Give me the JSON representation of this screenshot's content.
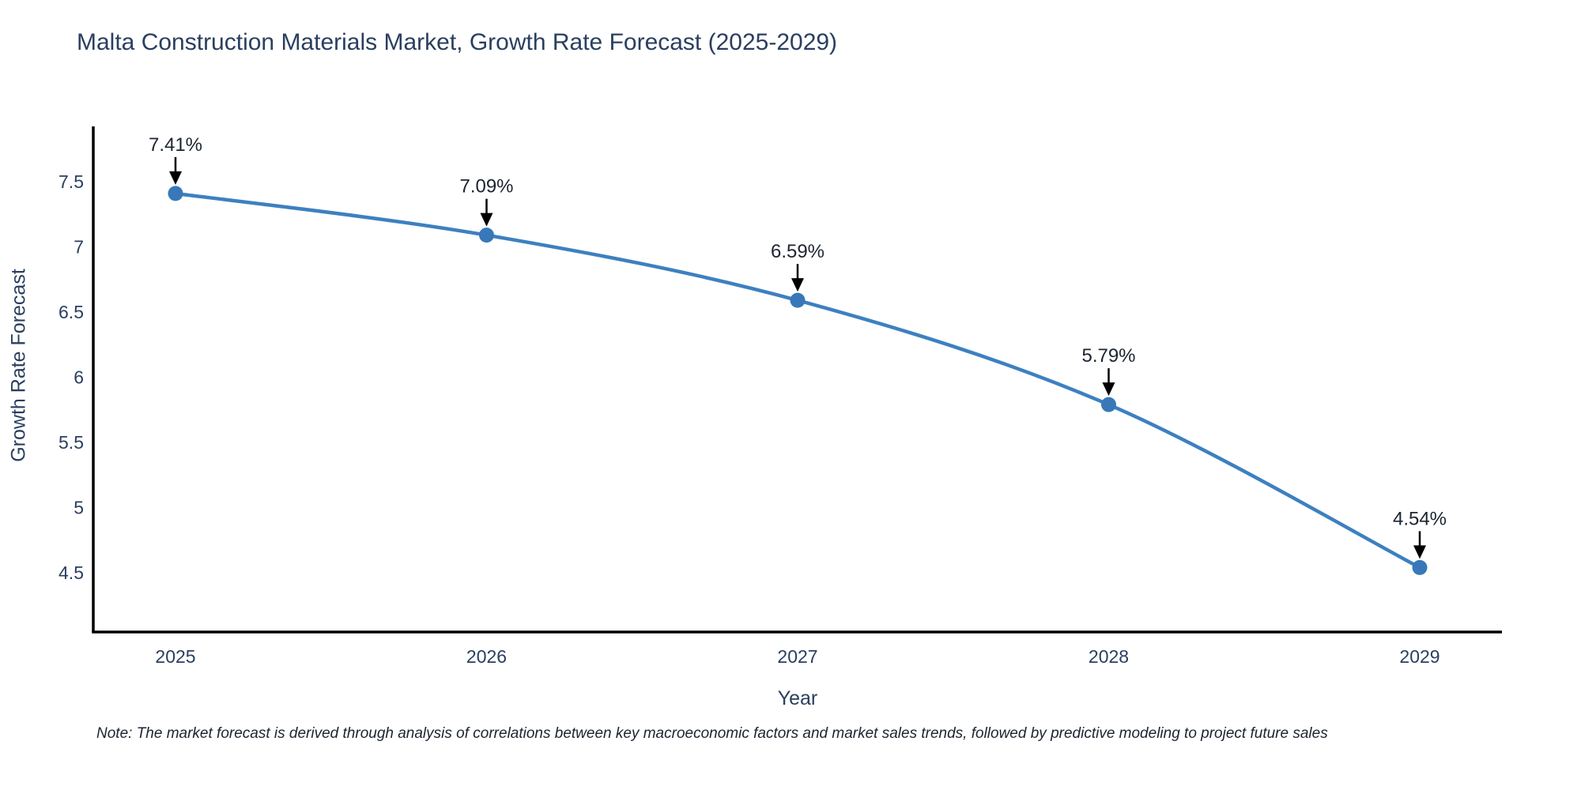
{
  "title": "Malta Construction Materials Market, Growth Rate Forecast (2025-2029)",
  "note": "Note: The market forecast is derived through analysis of correlations between key macroeconomic factors and market sales trends, followed by predictive modeling to project future sales",
  "chart_data": {
    "type": "line",
    "title": "Malta Construction Materials Market, Growth Rate Forecast (2025-2029)",
    "x": [
      2025,
      2026,
      2027,
      2028,
      2029
    ],
    "series": [
      {
        "name": "Growth Rate Forecast",
        "values": [
          7.41,
          7.09,
          6.59,
          5.79,
          4.54
        ],
        "point_labels": [
          "7.41%",
          "7.09%",
          "6.59%",
          "5.79%",
          "4.54%"
        ]
      }
    ],
    "xlabel": "Year",
    "ylabel": "Growth Rate Forecast",
    "x_tick_labels": [
      "2025",
      "2026",
      "2027",
      "2028",
      "2029"
    ],
    "y_ticks": [
      7.5,
      7,
      6.5,
      6,
      5.5,
      5,
      4.5
    ],
    "ylim": [
      4.05,
      7.92
    ],
    "grid": false,
    "legend": "none",
    "line_shape": "spline",
    "colors": {
      "line": "#3d80c0",
      "marker": "#3878b8",
      "annotation_text": "#1c2430",
      "arrow": "#000000",
      "axis_line": "#000000",
      "axis_text": "#2a3f5f",
      "title_text": "#2a3f5f",
      "background": "#ffffff"
    }
  }
}
